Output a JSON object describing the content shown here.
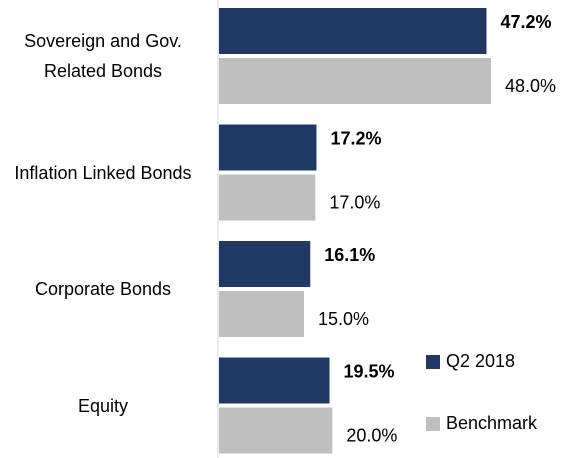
{
  "chart_data": {
    "type": "bar",
    "orientation": "horizontal",
    "categories": [
      "Sovereign and Gov. Related Bonds",
      "Inflation Linked Bonds",
      "Corporate Bonds",
      "Equity"
    ],
    "series": [
      {
        "name": "Q2 2018",
        "color": "#1f3864",
        "values": [
          47.2,
          17.2,
          16.1,
          19.5
        ],
        "value_labels": [
          "47.2%",
          "17.2%",
          "16.1%",
          "19.5%"
        ]
      },
      {
        "name": "Benchmark",
        "color": "#bfbfbf",
        "values": [
          48.0,
          17.0,
          15.0,
          20.0
        ],
        "value_labels": [
          "48.0%",
          "17.0%",
          "15.0%",
          "20.0%"
        ]
      }
    ],
    "xlim": [
      0,
      60
    ],
    "legend": "lower right"
  }
}
